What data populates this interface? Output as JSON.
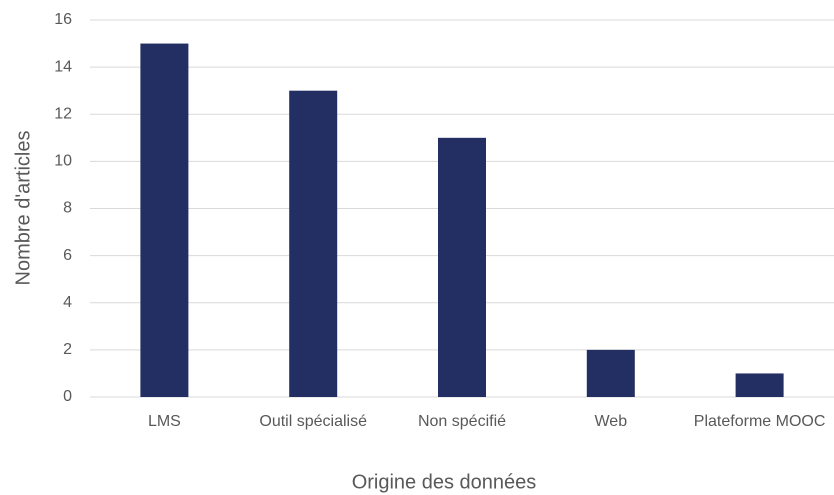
{
  "chart_data": {
    "type": "bar",
    "x_label": "Origine des données",
    "y_label": "Nombre d'articles",
    "categories": [
      "LMS",
      "Outil spécialisé",
      "Non spécifié",
      "Web",
      "Plateforme MOOC"
    ],
    "values": [
      15,
      13,
      11,
      2,
      1
    ],
    "color": "#232e62",
    "ylim": [
      0,
      16
    ],
    "yticks": [
      0,
      2,
      4,
      6,
      8,
      10,
      12,
      14,
      16
    ],
    "grid": true
  }
}
